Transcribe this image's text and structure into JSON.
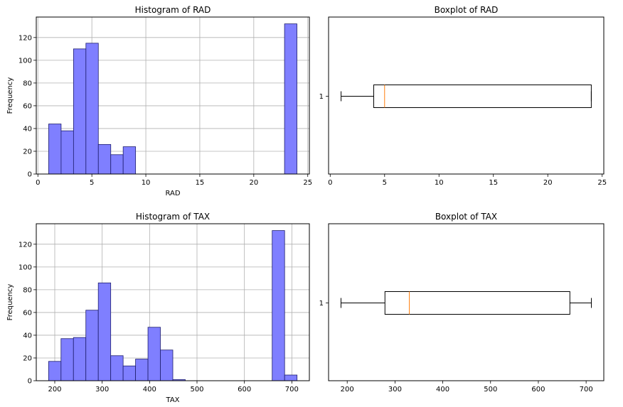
{
  "chart_data": [
    {
      "type": "histogram",
      "title": "Histogram of RAD",
      "xlabel": "RAD",
      "ylabel": "Frequency",
      "xlim": [
        -0.15,
        25.15
      ],
      "ylim": [
        0,
        138
      ],
      "xticks": [
        0,
        5,
        10,
        15,
        20,
        25
      ],
      "yticks": [
        0,
        20,
        40,
        60,
        80,
        100,
        120
      ],
      "grid": true,
      "bar_color": "#7f7fff",
      "edge_color": "#1e1e6e",
      "bin_start": 1,
      "bin_width": 1.15,
      "values": [
        44,
        38,
        110,
        115,
        26,
        17,
        24,
        0,
        0,
        0,
        0,
        0,
        0,
        0,
        0,
        0,
        0,
        0,
        0,
        132
      ]
    },
    {
      "type": "boxplot",
      "title": "Boxplot of RAD",
      "orientation": "horizontal",
      "category_label": "1",
      "xlim": [
        -0.15,
        25.15
      ],
      "xticks": [
        0,
        5,
        10,
        15,
        20,
        25
      ],
      "whisker_low": 1,
      "q1": 4,
      "median": 5,
      "q3": 24,
      "whisker_high": 24,
      "median_color": "#ff7f0e"
    },
    {
      "type": "histogram",
      "title": "Histogram of TAX",
      "xlabel": "TAX",
      "ylabel": "Frequency",
      "xlim": [
        161,
        737
      ],
      "ylim": [
        0,
        138
      ],
      "xticks": [
        200,
        300,
        400,
        500,
        600,
        700
      ],
      "yticks": [
        0,
        20,
        40,
        60,
        80,
        100,
        120
      ],
      "grid": true,
      "bar_color": "#7f7fff",
      "edge_color": "#1e1e6e",
      "bin_start": 187,
      "bin_width": 26.2,
      "values": [
        17,
        37,
        38,
        62,
        86,
        22,
        13,
        19,
        47,
        27,
        1,
        0,
        0,
        0,
        0,
        0,
        0,
        0,
        132,
        5
      ]
    },
    {
      "type": "boxplot",
      "title": "Boxplot of TAX",
      "orientation": "horizontal",
      "category_label": "1",
      "xlim": [
        161,
        737
      ],
      "xticks": [
        200,
        300,
        400,
        500,
        600,
        700
      ],
      "whisker_low": 187,
      "q1": 279,
      "median": 330,
      "q3": 666,
      "whisker_high": 711,
      "median_color": "#ff7f0e"
    }
  ]
}
